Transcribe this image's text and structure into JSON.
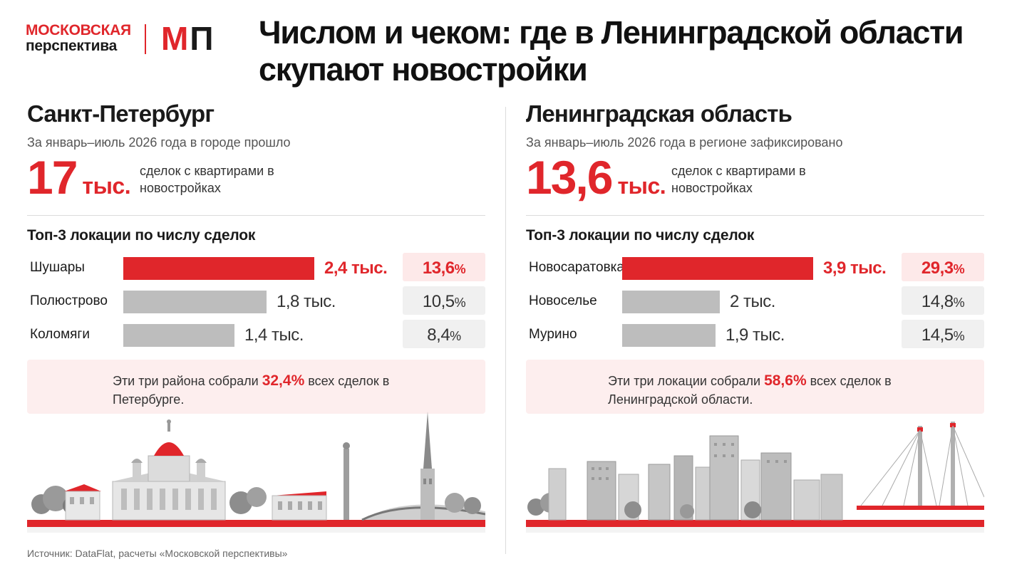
{
  "logo": {
    "line1": "МОСКОВСКАЯ",
    "line2": "перспектива",
    "mark_m": "М",
    "mark_p": "П"
  },
  "title": "Числом и чеком: где в Ленинградской области скупают новостройки",
  "colors": {
    "accent": "#e0262b",
    "bar_gray": "#bdbdbd",
    "highlight_bg": "#fdeeee"
  },
  "spb": {
    "title": "Санкт-Петербург",
    "subtitle": "За январь–июль 2026 года в городе прошло",
    "big_number": "17",
    "big_unit": "тыс.",
    "big_desc": "сделок с квартирами в новостройках",
    "top3_title": "Топ-3 локации по числу сделок",
    "items": [
      {
        "name": "Шушары",
        "value_label": "2,4 тыс.",
        "pct": "13,6",
        "pct_sign": "%"
      },
      {
        "name": "Полюстрово",
        "value_label": "1,8 тыс.",
        "pct": "10,5",
        "pct_sign": "%"
      },
      {
        "name": "Коломяги",
        "value_label": "1,4 тыс.",
        "pct": "8,4",
        "pct_sign": "%"
      }
    ],
    "note_before": "Эти три района собрали ",
    "note_value": "32,4%",
    "note_after": " всех сделок в Петербурге."
  },
  "lo": {
    "title": "Ленинградская область",
    "subtitle": "За январь–июль 2026 года в регионе зафиксировано",
    "big_number": "13,6",
    "big_unit": "тыс.",
    "big_desc": "сделок с квартирами в новостройках",
    "top3_title": "Топ-3 локации по числу сделок",
    "items": [
      {
        "name": "Новосаратовка",
        "value_label": "3,9 тыс.",
        "pct": "29,3",
        "pct_sign": "%"
      },
      {
        "name": "Новоселье",
        "value_label": "2 тыс.",
        "pct": "14,8",
        "pct_sign": "%"
      },
      {
        "name": "Мурино",
        "value_label": "1,9 тыс.",
        "pct": "14,5",
        "pct_sign": "%"
      }
    ],
    "note_before": "Эти три локации собрали ",
    "note_value": "58,6%",
    "note_after": " всех сделок в Ленинградской области."
  },
  "chart_data": [
    {
      "type": "bar",
      "title": "Топ-3 локации по числу сделок",
      "categories": [
        "Шушары",
        "Полюстрово",
        "Коломяги"
      ],
      "values": [
        2.4,
        1.8,
        1.4
      ],
      "shares_pct": [
        13.6,
        10.5,
        8.4
      ]
    },
    {
      "type": "bar",
      "title": "Топ-3 локации по числу сделок",
      "categories": [
        "Новосаратовка",
        "Новоселье",
        "Мурино"
      ],
      "values": [
        3.9,
        2.0,
        1.9
      ],
      "shares_pct": [
        29.3,
        14.8,
        14.5
      ]
    }
  ],
  "source": "Источник: DataFlat, расчеты «Московской перспективы»"
}
